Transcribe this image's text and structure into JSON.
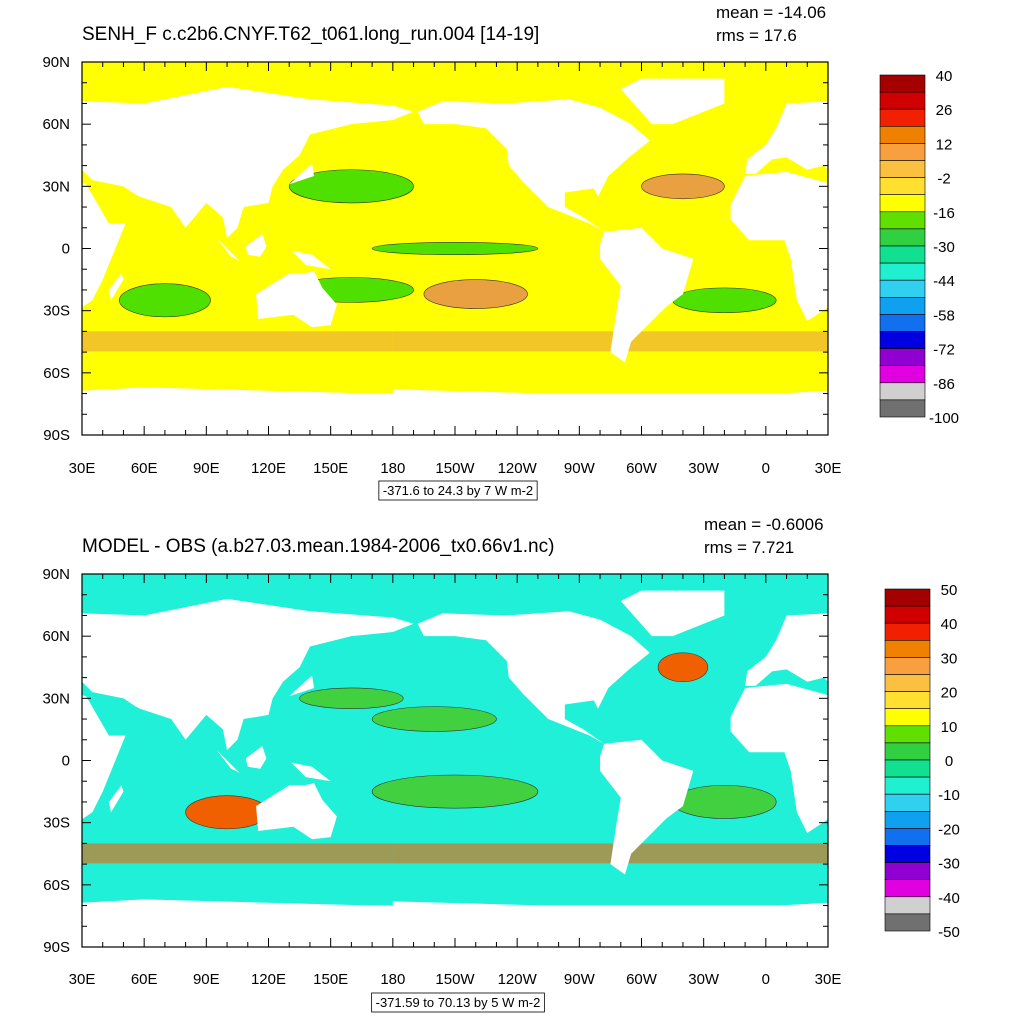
{
  "panels": [
    {
      "title": "SENH_F c.c2b6.CNYF.T62_t061.long_run.004 [14-19]",
      "mean": "mean = -14.06",
      "rms": "rms = 17.6",
      "lat_labels": [
        "90N",
        "60N",
        "30N",
        "0",
        "30S",
        "60S",
        "90S"
      ],
      "lon_labels": [
        "30E",
        "60E",
        "90E",
        "120E",
        "150E",
        "180",
        "150W",
        "120W",
        "90W",
        "60W",
        "30W",
        "0",
        "30E"
      ],
      "colorbar": {
        "labels": [
          "40",
          "26",
          "12",
          "-2",
          "-16",
          "-30",
          "-44",
          "-58",
          "-72",
          "-86",
          "-100"
        ]
      },
      "footer": "-371.6 to 24.3 by 7 W m-2",
      "base_color": "#ffff00"
    },
    {
      "title": "MODEL - OBS (a.b27.03.mean.1984-2006_tx0.66v1.nc)",
      "mean": "mean = -0.6006",
      "rms": "rms = 7.721",
      "lat_labels": [
        "90N",
        "60N",
        "30N",
        "0",
        "30S",
        "60S",
        "90S"
      ],
      "lon_labels": [
        "30E",
        "60E",
        "90E",
        "120E",
        "150E",
        "180",
        "150W",
        "120W",
        "90W",
        "60W",
        "30W",
        "0",
        "30E"
      ],
      "colorbar": {
        "labels": [
          "50",
          "40",
          "30",
          "20",
          "10",
          "0",
          "-10",
          "-20",
          "-30",
          "-40",
          "-50"
        ]
      },
      "footer": "-371.59 to 70.13 by 5 W m-2",
      "base_color": "#20f0d8"
    }
  ],
  "colorbar_colors": [
    "#a50000",
    "#d00000",
    "#f02000",
    "#f08000",
    "#f8a040",
    "#fcc040",
    "#ffe030",
    "#ffff00",
    "#60e000",
    "#30d040",
    "#10e090",
    "#20f0d0",
    "#30d0f0",
    "#10a0f0",
    "#1070f0",
    "#0000e0",
    "#9000d0",
    "#e000e0",
    "#d0d0d0",
    "#707070"
  ]
}
